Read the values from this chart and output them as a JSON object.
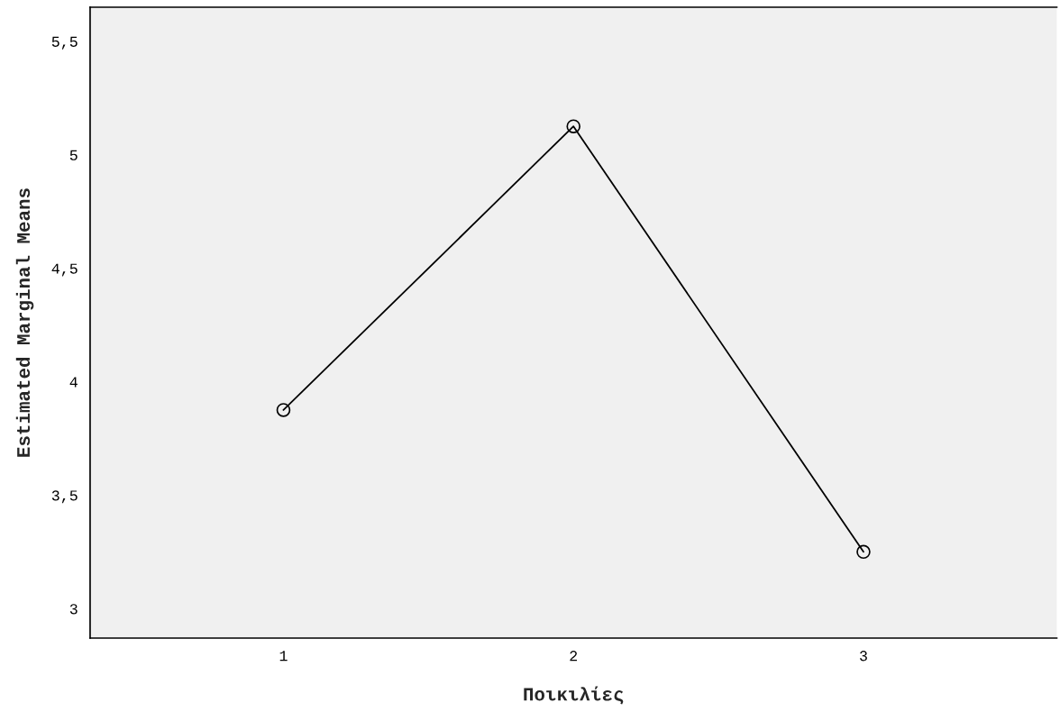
{
  "chart_data": {
    "type": "line",
    "xlabel": "Ποικιλίες",
    "ylabel": "Estimated Marginal Means",
    "categories": [
      "1",
      "2",
      "3"
    ],
    "series": [
      {
        "color": "#000000",
        "values": [
          3.875,
          5.125,
          3.25
        ]
      }
    ],
    "ylim": [
      2.87,
      5.65
    ],
    "yticks": [
      3,
      {
        "value": 3.5,
        "label": "3,5"
      },
      4,
      {
        "value": 4.5,
        "label": "4,5"
      },
      5,
      {
        "value": 5.5,
        "label": "5,5"
      }
    ],
    "marker": "circle",
    "line_style": "solid",
    "grid": false
  }
}
